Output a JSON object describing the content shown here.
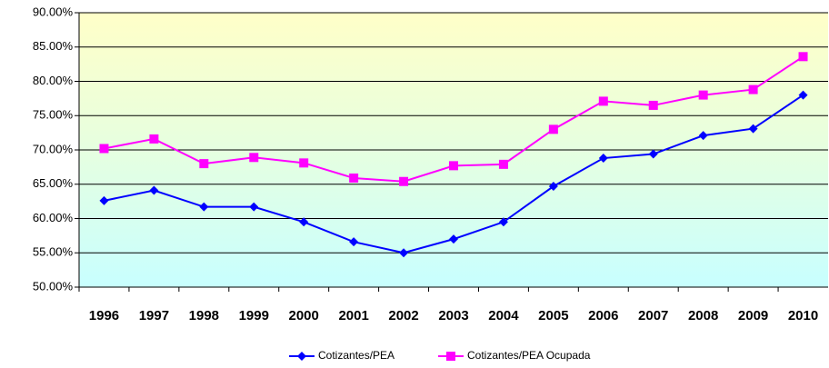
{
  "chart_data": {
    "type": "line",
    "categories": [
      "1996",
      "1997",
      "1998",
      "1999",
      "2000",
      "2001",
      "2002",
      "2003",
      "2004",
      "2005",
      "2006",
      "2007",
      "2008",
      "2009",
      "2010"
    ],
    "series": [
      {
        "name": "Cotizantes/PEA",
        "color": "#0000ff",
        "marker": "diamond",
        "values": [
          62.6,
          64.1,
          61.7,
          61.7,
          59.5,
          56.6,
          55.0,
          57.0,
          59.5,
          64.7,
          68.8,
          69.4,
          72.1,
          73.1,
          78.0
        ]
      },
      {
        "name": "Cotizantes/PEA Ocupada",
        "color": "#ff00ff",
        "marker": "square",
        "values": [
          70.2,
          71.6,
          68.0,
          68.9,
          68.1,
          65.9,
          65.4,
          67.7,
          67.9,
          73.0,
          77.1,
          76.5,
          78.0,
          78.8,
          83.6
        ]
      }
    ],
    "ylim": [
      50,
      90
    ],
    "yticks": [
      {
        "value": 50,
        "label": "50.00%"
      },
      {
        "value": 55,
        "label": "55.00%"
      },
      {
        "value": 60,
        "label": "60.00%"
      },
      {
        "value": 65,
        "label": "65.00%"
      },
      {
        "value": 70,
        "label": "70.00%"
      },
      {
        "value": 75,
        "label": "75.00%"
      },
      {
        "value": 80,
        "label": "80.00%"
      },
      {
        "value": 85,
        "label": "85.00%"
      },
      {
        "value": 90,
        "label": "90.00%"
      }
    ],
    "grid": true,
    "legend": "bottom"
  }
}
